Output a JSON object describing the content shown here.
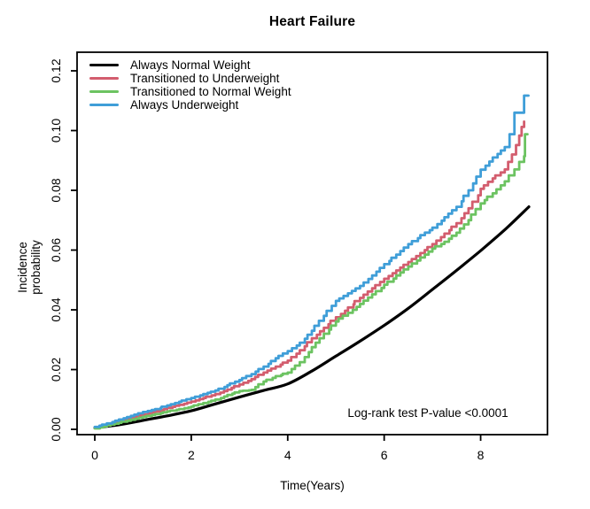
{
  "title": "Heart Failure",
  "chart_data": {
    "type": "line",
    "title": "Heart Failure",
    "xlabel": "Time(Years)",
    "ylabel": "Incidence probability",
    "ylabel_lines": [
      "Incidence",
      "probability"
    ],
    "annotation": "Log-rank test P-value <0.0001",
    "xlim": [
      0,
      9
    ],
    "ylim": [
      0,
      0.12
    ],
    "xticks": [
      0,
      2,
      4,
      6,
      8
    ],
    "yticks": [
      "0.00",
      "0.02",
      "0.04",
      "0.06",
      "0.08",
      "0.10",
      "0.12"
    ],
    "grid": false,
    "legend_position": "top-left",
    "axis_color": "#000000",
    "series": [
      {
        "name": "Always Normal Weight",
        "color": "#000000",
        "style": "smooth",
        "points": [
          [
            0,
            0.0005
          ],
          [
            0.5,
            0.0015
          ],
          [
            1,
            0.003
          ],
          [
            1.5,
            0.0045
          ],
          [
            2,
            0.0062
          ],
          [
            2.5,
            0.0085
          ],
          [
            3,
            0.0108
          ],
          [
            3.5,
            0.013
          ],
          [
            4,
            0.0152
          ],
          [
            4.5,
            0.0195
          ],
          [
            5,
            0.0245
          ],
          [
            5.5,
            0.0295
          ],
          [
            6,
            0.0348
          ],
          [
            6.5,
            0.0405
          ],
          [
            7,
            0.0468
          ],
          [
            7.5,
            0.0532
          ],
          [
            8,
            0.0598
          ],
          [
            8.5,
            0.0668
          ],
          [
            9,
            0.0745
          ]
        ]
      },
      {
        "name": "Transitioned to Underweight",
        "color": "#d35d6e",
        "style": "step",
        "points": [
          [
            0,
            0.0005
          ],
          [
            0.25,
            0.0018
          ],
          [
            0.5,
            0.0028
          ],
          [
            0.75,
            0.004
          ],
          [
            1,
            0.005
          ],
          [
            1.25,
            0.006
          ],
          [
            1.5,
            0.0072
          ],
          [
            1.75,
            0.0082
          ],
          [
            2,
            0.0093
          ],
          [
            2.25,
            0.0105
          ],
          [
            2.5,
            0.0118
          ],
          [
            2.75,
            0.0133
          ],
          [
            3,
            0.015
          ],
          [
            3.25,
            0.0168
          ],
          [
            3.5,
            0.019
          ],
          [
            3.75,
            0.021
          ],
          [
            4,
            0.023
          ],
          [
            4.25,
            0.0265
          ],
          [
            4.5,
            0.0305
          ],
          [
            4.75,
            0.034
          ],
          [
            5,
            0.0375
          ],
          [
            5.25,
            0.0408
          ],
          [
            5.5,
            0.044
          ],
          [
            5.75,
            0.0472
          ],
          [
            6,
            0.0504
          ],
          [
            6.25,
            0.0532
          ],
          [
            6.5,
            0.056
          ],
          [
            6.75,
            0.059
          ],
          [
            7,
            0.062
          ],
          [
            7.25,
            0.0655
          ],
          [
            7.5,
            0.069
          ],
          [
            7.75,
            0.074
          ],
          [
            8,
            0.0805
          ],
          [
            8.25,
            0.084
          ],
          [
            8.5,
            0.087
          ],
          [
            8.65,
            0.092
          ],
          [
            8.8,
            0.0983
          ],
          [
            8.85,
            0.1012
          ],
          [
            8.9,
            0.103
          ]
        ]
      },
      {
        "name": "Transitioned to Normal Weight",
        "color": "#6cc361",
        "style": "step",
        "points": [
          [
            0,
            0.0003
          ],
          [
            0.25,
            0.0013
          ],
          [
            0.5,
            0.0022
          ],
          [
            0.75,
            0.0032
          ],
          [
            1,
            0.0042
          ],
          [
            1.25,
            0.0051
          ],
          [
            1.5,
            0.006
          ],
          [
            1.75,
            0.0068
          ],
          [
            2,
            0.0076
          ],
          [
            2.25,
            0.0088
          ],
          [
            2.5,
            0.01
          ],
          [
            2.75,
            0.0115
          ],
          [
            3,
            0.0128
          ],
          [
            3.25,
            0.0132
          ],
          [
            3.5,
            0.016
          ],
          [
            3.75,
            0.0178
          ],
          [
            4,
            0.019
          ],
          [
            4.25,
            0.0225
          ],
          [
            4.5,
            0.0275
          ],
          [
            4.75,
            0.032
          ],
          [
            5,
            0.0361
          ],
          [
            5.25,
            0.039
          ],
          [
            5.5,
            0.042
          ],
          [
            5.75,
            0.0452
          ],
          [
            6,
            0.0484
          ],
          [
            6.25,
            0.0515
          ],
          [
            6.5,
            0.0545
          ],
          [
            6.75,
            0.0575
          ],
          [
            7,
            0.0605
          ],
          [
            7.25,
            0.0628
          ],
          [
            7.5,
            0.0658
          ],
          [
            7.75,
            0.07
          ],
          [
            8,
            0.0756
          ],
          [
            8.25,
            0.079
          ],
          [
            8.5,
            0.083
          ],
          [
            8.7,
            0.087
          ],
          [
            8.8,
            0.0895
          ],
          [
            8.9,
            0.0914
          ],
          [
            8.92,
            0.0988
          ],
          [
            8.97,
            0.0988
          ]
        ]
      },
      {
        "name": "Always Underweight",
        "color": "#3f9ed8",
        "style": "step",
        "points": [
          [
            0,
            0.0008
          ],
          [
            0.25,
            0.002
          ],
          [
            0.5,
            0.0033
          ],
          [
            0.75,
            0.0045
          ],
          [
            1,
            0.0058
          ],
          [
            1.25,
            0.0068
          ],
          [
            1.5,
            0.008
          ],
          [
            1.75,
            0.0092
          ],
          [
            2,
            0.0105
          ],
          [
            2.25,
            0.0118
          ],
          [
            2.5,
            0.013
          ],
          [
            2.75,
            0.0148
          ],
          [
            3,
            0.0165
          ],
          [
            3.25,
            0.0185
          ],
          [
            3.5,
            0.021
          ],
          [
            3.75,
            0.0238
          ],
          [
            4,
            0.0262
          ],
          [
            4.25,
            0.029
          ],
          [
            4.5,
            0.033
          ],
          [
            4.75,
            0.038
          ],
          [
            5,
            0.043
          ],
          [
            5.25,
            0.0455
          ],
          [
            5.5,
            0.048
          ],
          [
            5.75,
            0.0515
          ],
          [
            6,
            0.0553
          ],
          [
            6.25,
            0.0585
          ],
          [
            6.5,
            0.062
          ],
          [
            6.75,
            0.065
          ],
          [
            7,
            0.0675
          ],
          [
            7.25,
            0.071
          ],
          [
            7.5,
            0.0745
          ],
          [
            7.75,
            0.08
          ],
          [
            8,
            0.0869
          ],
          [
            8.25,
            0.091
          ],
          [
            8.5,
            0.0945
          ],
          [
            8.6,
            0.0988
          ],
          [
            8.7,
            0.106
          ],
          [
            8.88,
            0.106
          ],
          [
            8.9,
            0.1117
          ],
          [
            8.99,
            0.1117
          ]
        ]
      }
    ]
  }
}
